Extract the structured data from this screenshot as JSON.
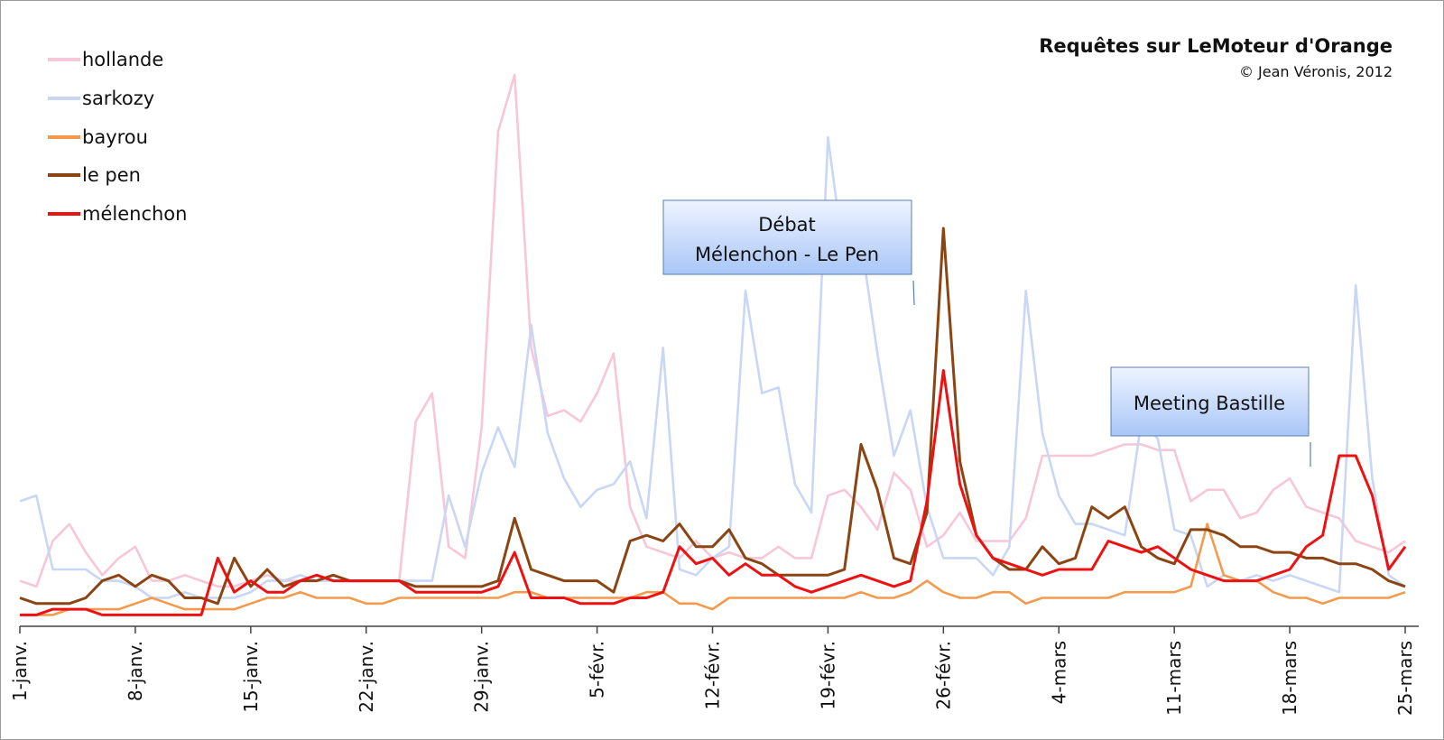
{
  "chart_data": {
    "type": "line",
    "title": "Requêtes sur LeMoteur d'Orange",
    "subtitle": "© Jean Véronis, 2012",
    "xlabel": "",
    "ylabel": "",
    "ylim": [
      0,
      100
    ],
    "grid": false,
    "legend_position": "top-left",
    "tick_labels": [
      "1-janv.",
      "8-janv.",
      "15-janv.",
      "22-janv.",
      "29-janv.",
      "5-févr.",
      "12-févr.",
      "19-févr.",
      "26-févr.",
      "4-mars",
      "11-mars",
      "18-mars",
      "25-mars"
    ],
    "x_count": 85,
    "series": [
      {
        "name": "hollande",
        "color": "#f7c6d8",
        "values": [
          8,
          7,
          15,
          18,
          13,
          9,
          12,
          14,
          8,
          8,
          9,
          8,
          7,
          7,
          8,
          9,
          8,
          8,
          8,
          8,
          8,
          8,
          8,
          8,
          36,
          41,
          14,
          12,
          35,
          87,
          97,
          49,
          37,
          38,
          36,
          41,
          48,
          21,
          14,
          13,
          12,
          15,
          12,
          13,
          12,
          12,
          14,
          12,
          12,
          23,
          24,
          21,
          17,
          27,
          24,
          14,
          16,
          20,
          15,
          15,
          15,
          19,
          30,
          30,
          30,
          30,
          31,
          32,
          32,
          31,
          31,
          22,
          24,
          24,
          19,
          20,
          24,
          26,
          21,
          20,
          19,
          15,
          14,
          13,
          15
        ]
      },
      {
        "name": "sarkozy",
        "color": "#c9d7f6",
        "values": [
          22,
          23,
          10,
          10,
          10,
          8,
          8,
          7,
          5,
          5,
          6,
          5,
          5,
          5,
          6,
          8,
          8,
          9,
          8,
          8,
          8,
          8,
          8,
          8,
          8,
          8,
          23,
          14,
          27,
          35,
          28,
          53,
          34,
          26,
          21,
          24,
          25,
          29,
          19,
          49,
          10,
          9,
          12,
          14,
          59,
          41,
          42,
          25,
          20,
          86,
          64,
          68,
          48,
          30,
          38,
          21,
          12,
          12,
          12,
          9,
          14,
          59,
          34,
          23,
          18,
          18,
          17,
          16,
          36,
          33,
          17,
          16,
          7,
          9,
          8,
          9,
          8,
          9,
          8,
          7,
          6,
          60,
          26,
          9,
          7
        ]
      },
      {
        "name": "bayrou",
        "color": "#f39a4e",
        "values": [
          2,
          2,
          2,
          3,
          3,
          3,
          3,
          4,
          5,
          4,
          3,
          3,
          3,
          3,
          4,
          5,
          5,
          6,
          5,
          5,
          5,
          4,
          4,
          5,
          5,
          5,
          5,
          5,
          5,
          5,
          6,
          6,
          5,
          5,
          5,
          5,
          5,
          5,
          6,
          6,
          4,
          4,
          3,
          5,
          5,
          5,
          5,
          5,
          5,
          5,
          5,
          6,
          5,
          5,
          6,
          8,
          6,
          5,
          5,
          6,
          6,
          4,
          5,
          5,
          5,
          5,
          5,
          6,
          6,
          6,
          6,
          7,
          18,
          9,
          8,
          8,
          6,
          5,
          5,
          4,
          5,
          5,
          5,
          5,
          6
        ]
      },
      {
        "name": "le pen",
        "color": "#8b4513",
        "values": [
          5,
          4,
          4,
          4,
          5,
          8,
          9,
          7,
          9,
          8,
          5,
          5,
          4,
          12,
          7,
          10,
          7,
          8,
          8,
          9,
          8,
          8,
          8,
          8,
          7,
          7,
          7,
          7,
          7,
          8,
          19,
          10,
          9,
          8,
          8,
          8,
          6,
          15,
          16,
          15,
          18,
          14,
          14,
          17,
          12,
          11,
          9,
          9,
          9,
          9,
          10,
          32,
          24,
          12,
          11,
          20,
          70,
          29,
          16,
          12,
          10,
          10,
          14,
          11,
          12,
          21,
          19,
          21,
          14,
          12,
          11,
          17,
          17,
          16,
          14,
          14,
          13,
          13,
          12,
          12,
          11,
          11,
          10,
          8,
          7
        ]
      },
      {
        "name": "mélenchon",
        "color": "#ee1111",
        "values": [
          2,
          2,
          3,
          3,
          3,
          2,
          2,
          2,
          2,
          2,
          2,
          2,
          12,
          6,
          8,
          6,
          6,
          8,
          9,
          8,
          8,
          8,
          8,
          8,
          6,
          6,
          6,
          6,
          6,
          7,
          13,
          5,
          5,
          5,
          4,
          4,
          4,
          5,
          5,
          6,
          14,
          11,
          12,
          9,
          11,
          9,
          9,
          7,
          6,
          7,
          8,
          9,
          8,
          7,
          8,
          22,
          45,
          25,
          16,
          12,
          11,
          10,
          9,
          10,
          10,
          10,
          15,
          14,
          13,
          14,
          12,
          10,
          9,
          8,
          8,
          8,
          9,
          10,
          14,
          16,
          30,
          30,
          23,
          10,
          14
        ]
      }
    ],
    "annotations": [
      {
        "lines": [
          "Débat",
          "Mélenchon - Le Pen"
        ]
      },
      {
        "lines": [
          "Meeting Bastille"
        ]
      }
    ]
  }
}
